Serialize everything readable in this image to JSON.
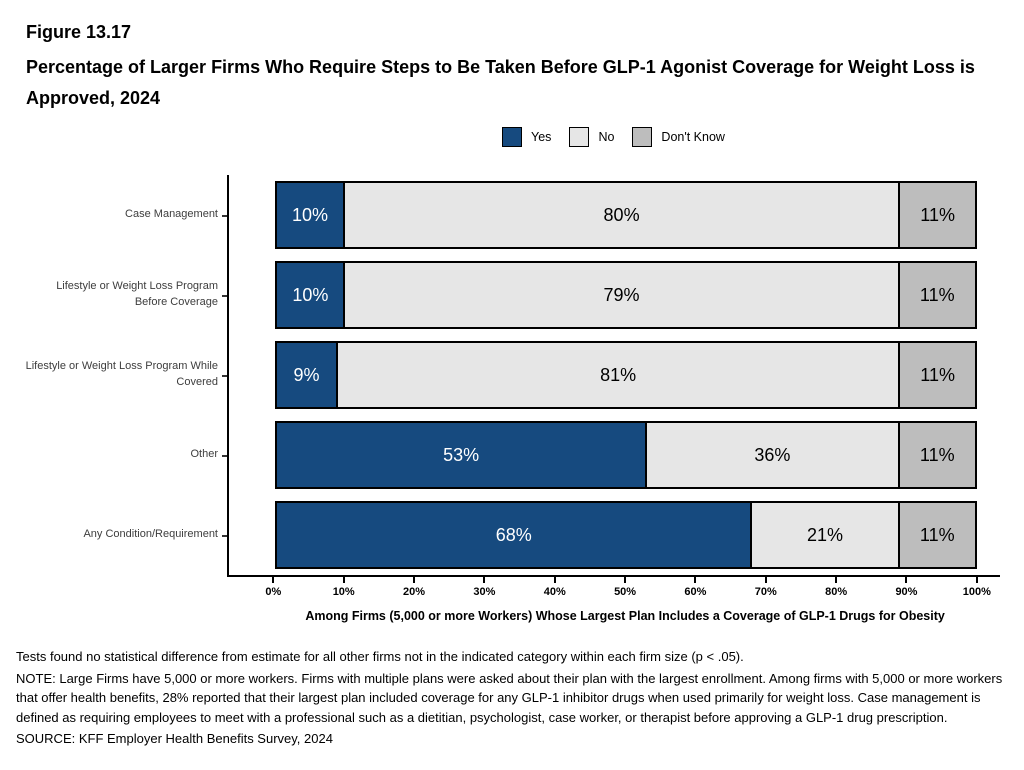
{
  "header": {
    "figure_number": "Figure 13.17",
    "title": "Percentage of Larger Firms Who Require Steps to Be Taken Before GLP-1 Agonist Coverage for Weight Loss is Approved, 2024"
  },
  "colors": {
    "yes": "#164A7F",
    "no": "#E6E6E6",
    "dont_know": "#BDBDBD",
    "border": "#000000"
  },
  "chart_data": {
    "type": "bar",
    "orientation": "horizontal",
    "stacked": true,
    "grid": false,
    "legend_position": "top",
    "categories": [
      "Case Management",
      "Lifestyle or Weight Loss Program Before Coverage",
      "Lifestyle or Weight Loss Program While Covered",
      "Other",
      "Any Condition/Requirement"
    ],
    "series": [
      {
        "name": "Yes",
        "color": "#164A7F",
        "text_color": "#FFFFFF",
        "values": [
          10,
          10,
          9,
          53,
          68
        ]
      },
      {
        "name": "No",
        "color": "#E6E6E6",
        "text_color": "#000000",
        "values": [
          80,
          79,
          81,
          36,
          21
        ]
      },
      {
        "name": "Don't Know",
        "color": "#BDBDBD",
        "text_color": "#000000",
        "values": [
          11,
          11,
          11,
          11,
          11
        ]
      }
    ],
    "value_suffix": "%",
    "xlim": [
      0,
      100
    ],
    "x_ticks": [
      "0%",
      "10%",
      "20%",
      "30%",
      "40%",
      "50%",
      "60%",
      "70%",
      "80%",
      "90%",
      "100%"
    ],
    "xlabel": "Among Firms (5,000 or more Workers) Whose Largest Plan Includes a Coverage of GLP-1 Drugs for Obesity"
  },
  "footnotes": {
    "lines": [
      "Tests found no statistical difference from estimate for all other firms not in the indicated category within each firm size (p < .05).",
      "NOTE: Large Firms have 5,000 or more workers.  Firms with multiple plans were asked about their plan with the largest enrollment.  Among firms with 5,000 or more workers that offer health benefits, 28% reported that their largest plan included coverage for any GLP-1 inhibitor drugs when used primarily for weight loss. Case management is defined as requiring employees to meet with a professional such as a dietitian, psychologist, case worker, or therapist before approving a GLP-1 drug prescription.",
      "SOURCE: KFF Employer Health Benefits Survey, 2024"
    ]
  }
}
